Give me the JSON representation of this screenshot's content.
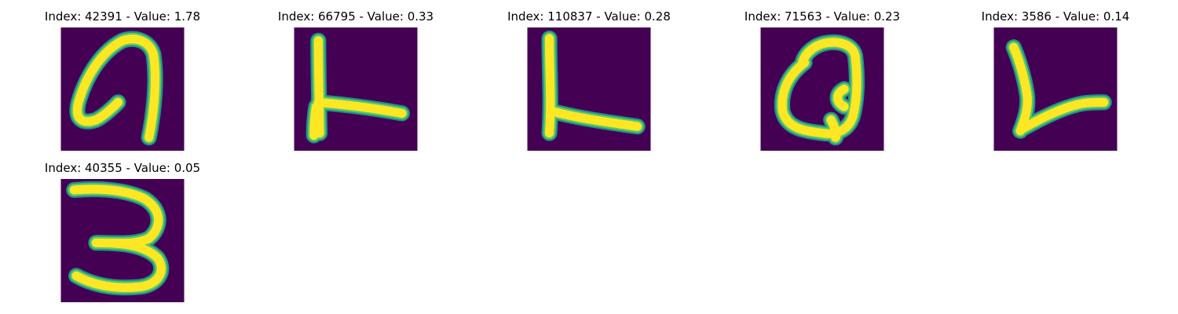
{
  "colors": {
    "background": "#440154",
    "stroke_core": "#fde725",
    "stroke_mid": "#5ec962",
    "stroke_edge": "#21918c"
  },
  "panels": [
    {
      "title": "Index: 42391 - Value: 1.78",
      "digit_shape": "seven-with-loop"
    },
    {
      "title": "Index: 66795 - Value: 0.33",
      "digit_shape": "four-like-stroke"
    },
    {
      "title": "Index: 110837 - Value: 0.28",
      "digit_shape": "l-shape"
    },
    {
      "title": "Index: 71563 - Value: 0.23",
      "digit_shape": "loop-with-tail"
    },
    {
      "title": "Index: 3586 - Value: 0.14",
      "digit_shape": "slanted-l-shape"
    },
    {
      "title": "Index: 40355 - Value: 0.05",
      "digit_shape": "three"
    }
  ]
}
